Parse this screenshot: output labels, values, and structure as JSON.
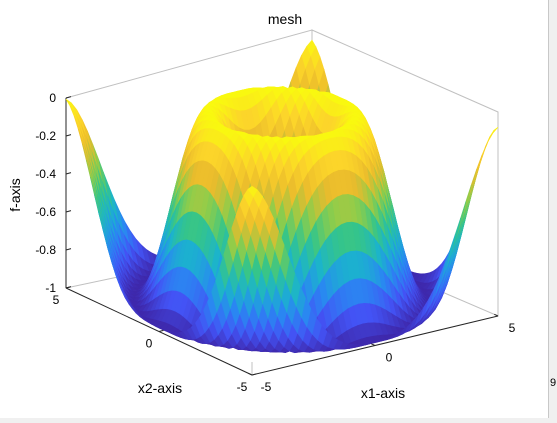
{
  "chart_data": {
    "type": "surface",
    "title": "mesh",
    "xlabel": "x1-axis",
    "ylabel": "x2-axis",
    "zlabel": "f-axis",
    "x_ticks": [
      "-5",
      "0",
      "5"
    ],
    "y_ticks": [
      "-5",
      "0",
      "5"
    ],
    "z_ticks": [
      "0",
      "-0.2",
      "-0.4",
      "-0.6",
      "-0.8",
      "-1"
    ],
    "xlim": [
      -5,
      5
    ],
    "ylim": [
      -5,
      5
    ],
    "zlim": [
      -1,
      0
    ],
    "grid": false,
    "colormap": "parula",
    "colormap_colors": [
      "#3e26a8",
      "#4353f5",
      "#2a87f2",
      "#1bb3cd",
      "#35c58a",
      "#8fcd4a",
      "#eabb2c",
      "#fcd52a",
      "#f9fb0e"
    ],
    "surface": {
      "description_of_shape": "radially symmetric ripple: z = -cos^2 of radius-based ripple",
      "rings": [
        {
          "r": 0.0,
          "z": -1.0
        },
        {
          "r": 1.2,
          "z": -0.95
        },
        {
          "r": 2.4,
          "z": 0.0
        },
        {
          "r": 3.2,
          "z": -0.2
        },
        {
          "r": 3.9,
          "z": -1.0
        },
        {
          "r": 5.0,
          "z": 0.0
        }
      ]
    }
  },
  "window": {
    "edge_glyph": "9"
  }
}
